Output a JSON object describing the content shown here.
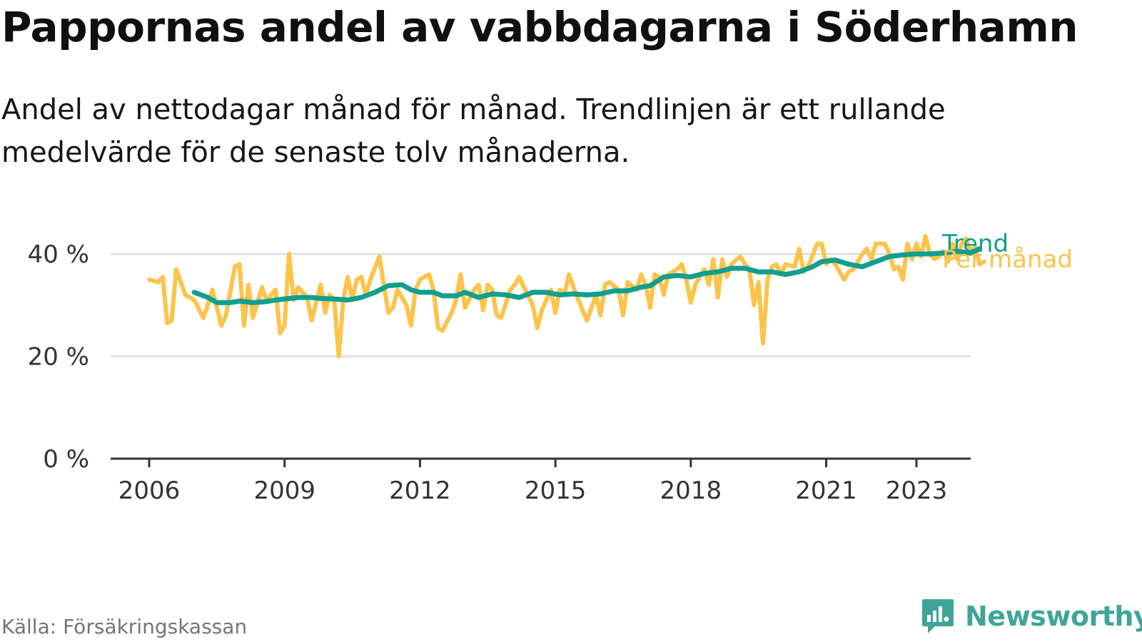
{
  "title": "Pappornas andel av vabbdagarna i Söderhamn",
  "subtitle": "Andel av nettodagar månad för månad. Trendlinjen är ett rullande medelvärde för de senaste tolv månaderna.",
  "source": "Källa: Försäkringskassan",
  "brand": "Newsworthy",
  "colors": {
    "monthly": "#fdc34a",
    "trend": "#119f8e",
    "grid": "#dddddd",
    "axis": "#333333",
    "brand": "#3fa59a"
  },
  "chart_data": {
    "type": "line",
    "x_unit": "year (decimal)",
    "y_unit": "%",
    "ylim": [
      0,
      45
    ],
    "y_ticks": [
      {
        "value": 0,
        "label": "0 %"
      },
      {
        "value": 20,
        "label": "20 %"
      },
      {
        "value": 40,
        "label": "40 %"
      }
    ],
    "x_ticks": [
      {
        "value": 2006,
        "label": "2006"
      },
      {
        "value": 2009,
        "label": "2009"
      },
      {
        "value": 2012,
        "label": "2012"
      },
      {
        "value": 2015,
        "label": "2015"
      },
      {
        "value": 2018,
        "label": "2018"
      },
      {
        "value": 2021,
        "label": "2021"
      },
      {
        "value": 2023,
        "label": "2023"
      }
    ],
    "grid": true,
    "series": [
      {
        "name": "Per månad",
        "key": "monthly",
        "points": [
          [
            2006.0,
            35
          ],
          [
            2006.2,
            34.5
          ],
          [
            2006.3,
            35.5
          ],
          [
            2006.4,
            26.5
          ],
          [
            2006.5,
            27
          ],
          [
            2006.6,
            37
          ],
          [
            2006.8,
            32
          ],
          [
            2006.9,
            31.5
          ],
          [
            2007.0,
            31
          ],
          [
            2007.2,
            27.5
          ],
          [
            2007.3,
            30
          ],
          [
            2007.4,
            33
          ],
          [
            2007.6,
            26
          ],
          [
            2007.7,
            28
          ],
          [
            2007.9,
            37.5
          ],
          [
            2008.0,
            38
          ],
          [
            2008.1,
            26
          ],
          [
            2008.2,
            34
          ],
          [
            2008.3,
            27.5
          ],
          [
            2008.5,
            33.5
          ],
          [
            2008.6,
            31
          ],
          [
            2008.8,
            33
          ],
          [
            2008.9,
            24.5
          ],
          [
            2009.0,
            26
          ],
          [
            2009.1,
            40
          ],
          [
            2009.2,
            31
          ],
          [
            2009.3,
            33.5
          ],
          [
            2009.5,
            31.5
          ],
          [
            2009.6,
            27
          ],
          [
            2009.8,
            34
          ],
          [
            2009.9,
            28.5
          ],
          [
            2010.0,
            32
          ],
          [
            2010.1,
            31
          ],
          [
            2010.2,
            20
          ],
          [
            2010.3,
            31
          ],
          [
            2010.4,
            35.5
          ],
          [
            2010.5,
            31
          ],
          [
            2010.6,
            35
          ],
          [
            2010.7,
            35.5
          ],
          [
            2010.8,
            32
          ],
          [
            2010.9,
            35
          ],
          [
            2011.1,
            39.5
          ],
          [
            2011.2,
            34
          ],
          [
            2011.3,
            28.5
          ],
          [
            2011.4,
            29.5
          ],
          [
            2011.5,
            33
          ],
          [
            2011.7,
            30
          ],
          [
            2011.8,
            26
          ],
          [
            2011.9,
            33
          ],
          [
            2012.0,
            35
          ],
          [
            2012.2,
            36
          ],
          [
            2012.3,
            33
          ],
          [
            2012.4,
            25.5
          ],
          [
            2012.5,
            25
          ],
          [
            2012.7,
            28.5
          ],
          [
            2012.8,
            31
          ],
          [
            2012.9,
            36
          ],
          [
            2013.0,
            29.5
          ],
          [
            2013.2,
            33
          ],
          [
            2013.3,
            34
          ],
          [
            2013.4,
            29
          ],
          [
            2013.5,
            34
          ],
          [
            2013.6,
            33
          ],
          [
            2013.7,
            28
          ],
          [
            2013.8,
            27.5
          ],
          [
            2014.0,
            33
          ],
          [
            2014.1,
            34
          ],
          [
            2014.2,
            35.5
          ],
          [
            2014.3,
            33.5
          ],
          [
            2014.5,
            30
          ],
          [
            2014.6,
            25.5
          ],
          [
            2014.7,
            29
          ],
          [
            2014.9,
            33
          ],
          [
            2015.0,
            28.5
          ],
          [
            2015.1,
            33
          ],
          [
            2015.2,
            32
          ],
          [
            2015.3,
            36
          ],
          [
            2015.4,
            33.5
          ],
          [
            2015.6,
            29
          ],
          [
            2015.7,
            27
          ],
          [
            2015.9,
            32
          ],
          [
            2016.0,
            28
          ],
          [
            2016.1,
            34
          ],
          [
            2016.2,
            34.5
          ],
          [
            2016.4,
            33
          ],
          [
            2016.5,
            28
          ],
          [
            2016.6,
            34.5
          ],
          [
            2016.8,
            33
          ],
          [
            2016.9,
            36
          ],
          [
            2017.0,
            34
          ],
          [
            2017.1,
            29.5
          ],
          [
            2017.2,
            36
          ],
          [
            2017.3,
            35.5
          ],
          [
            2017.4,
            32
          ],
          [
            2017.5,
            36
          ],
          [
            2017.7,
            37
          ],
          [
            2017.8,
            38
          ],
          [
            2017.9,
            35
          ],
          [
            2018.0,
            30.5
          ],
          [
            2018.1,
            34
          ],
          [
            2018.3,
            37
          ],
          [
            2018.4,
            34
          ],
          [
            2018.5,
            39
          ],
          [
            2018.6,
            31.5
          ],
          [
            2018.7,
            39
          ],
          [
            2018.8,
            35.5
          ],
          [
            2018.9,
            38
          ],
          [
            2019.1,
            39.5
          ],
          [
            2019.2,
            38
          ],
          [
            2019.3,
            37
          ],
          [
            2019.4,
            30
          ],
          [
            2019.5,
            34.5
          ],
          [
            2019.6,
            22.5
          ],
          [
            2019.7,
            35
          ],
          [
            2019.8,
            37.5
          ],
          [
            2019.9,
            38
          ],
          [
            2020.0,
            36
          ],
          [
            2020.1,
            38
          ],
          [
            2020.3,
            37.5
          ],
          [
            2020.4,
            41
          ],
          [
            2020.5,
            36.5
          ],
          [
            2020.6,
            37.5
          ],
          [
            2020.8,
            42
          ],
          [
            2020.9,
            42
          ],
          [
            2021.0,
            38
          ],
          [
            2021.1,
            39
          ],
          [
            2021.2,
            38
          ],
          [
            2021.4,
            35
          ],
          [
            2021.5,
            36.5
          ],
          [
            2021.6,
            37
          ],
          [
            2021.8,
            40
          ],
          [
            2021.9,
            41
          ],
          [
            2022.0,
            39
          ],
          [
            2022.1,
            42
          ],
          [
            2022.3,
            42
          ],
          [
            2022.4,
            40
          ],
          [
            2022.5,
            37
          ],
          [
            2022.6,
            37.5
          ],
          [
            2022.7,
            35
          ],
          [
            2022.8,
            42
          ],
          [
            2022.9,
            39
          ],
          [
            2023.0,
            42
          ],
          [
            2023.1,
            39.5
          ],
          [
            2023.2,
            43.5
          ],
          [
            2023.3,
            40
          ],
          [
            2023.4,
            39
          ],
          [
            2023.5,
            39.5
          ],
          [
            2023.6,
            40.5
          ],
          [
            2023.7,
            38.5
          ],
          [
            2023.8,
            42
          ],
          [
            2023.9,
            39
          ],
          [
            2024.0,
            42
          ],
          [
            2024.1,
            43
          ],
          [
            2024.2,
            40
          ],
          [
            2024.3,
            41.5
          ],
          [
            2024.4,
            38
          ],
          [
            2024.5,
            38.5
          ]
        ]
      },
      {
        "name": "Trend",
        "key": "trend",
        "points": [
          [
            2007.0,
            32.5
          ],
          [
            2007.3,
            31.5
          ],
          [
            2007.5,
            30.5
          ],
          [
            2007.8,
            30.5
          ],
          [
            2008.0,
            30.8
          ],
          [
            2008.3,
            30.5
          ],
          [
            2008.6,
            30.7
          ],
          [
            2008.8,
            31
          ],
          [
            2009.0,
            31.2
          ],
          [
            2009.3,
            31.5
          ],
          [
            2009.6,
            31.5
          ],
          [
            2009.8,
            31.3
          ],
          [
            2010.1,
            31.2
          ],
          [
            2010.4,
            31
          ],
          [
            2010.7,
            31.5
          ],
          [
            2011.0,
            32.5
          ],
          [
            2011.3,
            33.8
          ],
          [
            2011.6,
            34
          ],
          [
            2011.8,
            33
          ],
          [
            2012.0,
            32.5
          ],
          [
            2012.3,
            32.5
          ],
          [
            2012.5,
            31.8
          ],
          [
            2012.8,
            31.8
          ],
          [
            2013.0,
            32.5
          ],
          [
            2013.3,
            31.5
          ],
          [
            2013.6,
            32.2
          ],
          [
            2013.9,
            32
          ],
          [
            2014.2,
            31.5
          ],
          [
            2014.5,
            32.5
          ],
          [
            2014.8,
            32.5
          ],
          [
            2015.1,
            32
          ],
          [
            2015.4,
            32.2
          ],
          [
            2015.7,
            32
          ],
          [
            2016.0,
            32.2
          ],
          [
            2016.3,
            32.8
          ],
          [
            2016.6,
            32.8
          ],
          [
            2016.9,
            33.5
          ],
          [
            2017.1,
            33.8
          ],
          [
            2017.4,
            35.5
          ],
          [
            2017.7,
            35.8
          ],
          [
            2018.0,
            35.5
          ],
          [
            2018.3,
            36.2
          ],
          [
            2018.6,
            36.5
          ],
          [
            2018.9,
            37.2
          ],
          [
            2019.2,
            37.2
          ],
          [
            2019.5,
            36.5
          ],
          [
            2019.8,
            36.5
          ],
          [
            2020.1,
            36
          ],
          [
            2020.4,
            36.5
          ],
          [
            2020.7,
            37.5
          ],
          [
            2020.9,
            38.5
          ],
          [
            2021.2,
            38.8
          ],
          [
            2021.5,
            38
          ],
          [
            2021.8,
            37.5
          ],
          [
            2022.1,
            38.5
          ],
          [
            2022.4,
            39.5
          ],
          [
            2022.7,
            39.8
          ],
          [
            2023.0,
            40
          ],
          [
            2023.3,
            40
          ],
          [
            2023.6,
            40.2
          ],
          [
            2023.9,
            40.5
          ],
          [
            2024.2,
            40.2
          ],
          [
            2024.4,
            41
          ]
        ]
      }
    ],
    "labels": {
      "trend": "Trend",
      "monthly": "Per månad"
    }
  }
}
